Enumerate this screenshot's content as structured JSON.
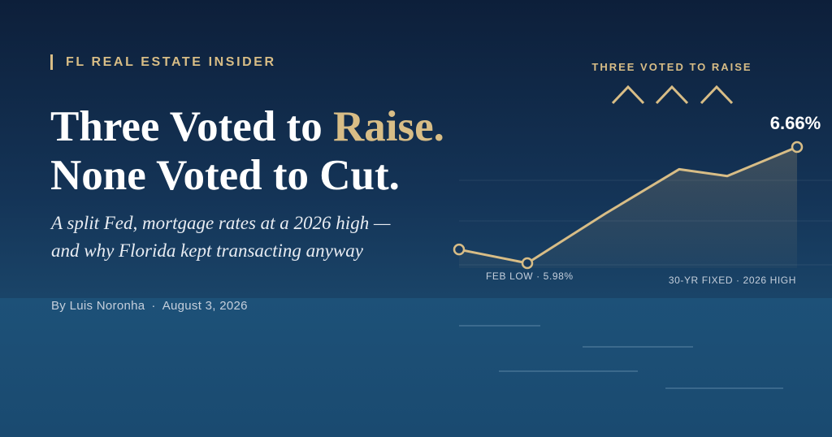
{
  "header": {
    "kicker": "FL REAL ESTATE INSIDER",
    "title": [
      "Three Voted to",
      "Raise.",
      "None Voted to Cut."
    ],
    "subtitle": [
      "A split Fed, mortgage rates at a 2026 high —",
      "and why Florida kept transacting anyway"
    ],
    "byline": {
      "author": "By Luis Noronha",
      "date": "August 3, 2026"
    }
  },
  "chart_data": {
    "type": "line",
    "annotation_top": "THREE VOTED TO RAISE",
    "annotation_low": "FEB LOW · 5.98%",
    "annotation_caption": "30-YR FIXED · 2026 HIGH",
    "categories": [
      null,
      null,
      null,
      null,
      null,
      null
    ],
    "values": [
      6.06,
      5.98,
      6.27,
      6.53,
      6.49,
      6.66
    ],
    "value_labels": [
      null,
      null,
      null,
      null,
      null,
      "6.66%"
    ],
    "color": "#d8bd86"
  }
}
